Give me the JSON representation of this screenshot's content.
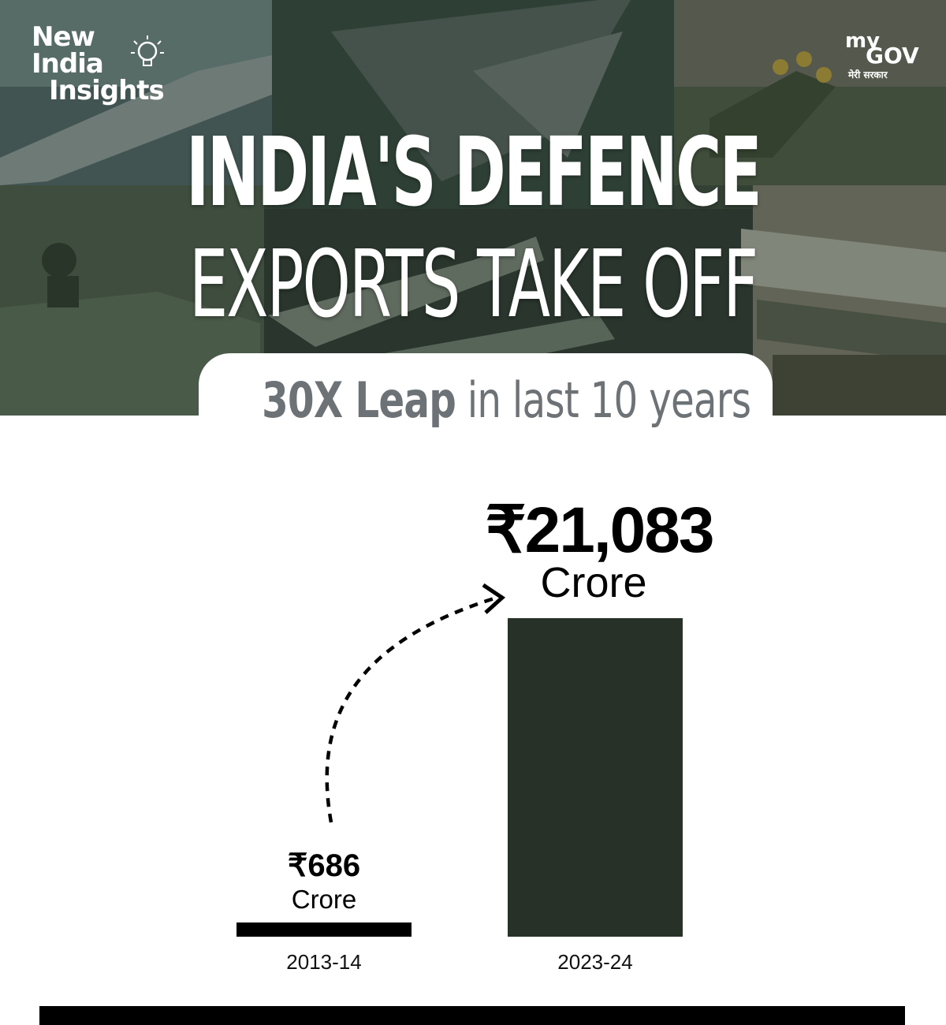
{
  "brand": {
    "left_line1": "New",
    "left_line2": "India",
    "left_line3": "Insights",
    "right_my": "my",
    "right_gov": "GOV",
    "right_hindi": "मेरी सरकार"
  },
  "headline": {
    "line1": "INDIA'S DEFENCE",
    "line2": "EXPORTS TAKE OFF"
  },
  "subheadline": {
    "bold": "30X Leap",
    "rest": "in last 10 years"
  },
  "colors": {
    "bar_small": "#000000",
    "bar_large": "#283128",
    "subheadline_text": "#6d7276"
  },
  "chart_data": {
    "type": "bar",
    "categories": [
      "2013-14",
      "2023-24"
    ],
    "values": [
      686,
      21083
    ],
    "value_labels": [
      "₹686",
      "₹21,083"
    ],
    "unit": "Crore",
    "ylim": [
      0,
      21083
    ],
    "grid": false,
    "annotation": "dashed curved arrow from 2013-14 value to 2023-24 value"
  }
}
